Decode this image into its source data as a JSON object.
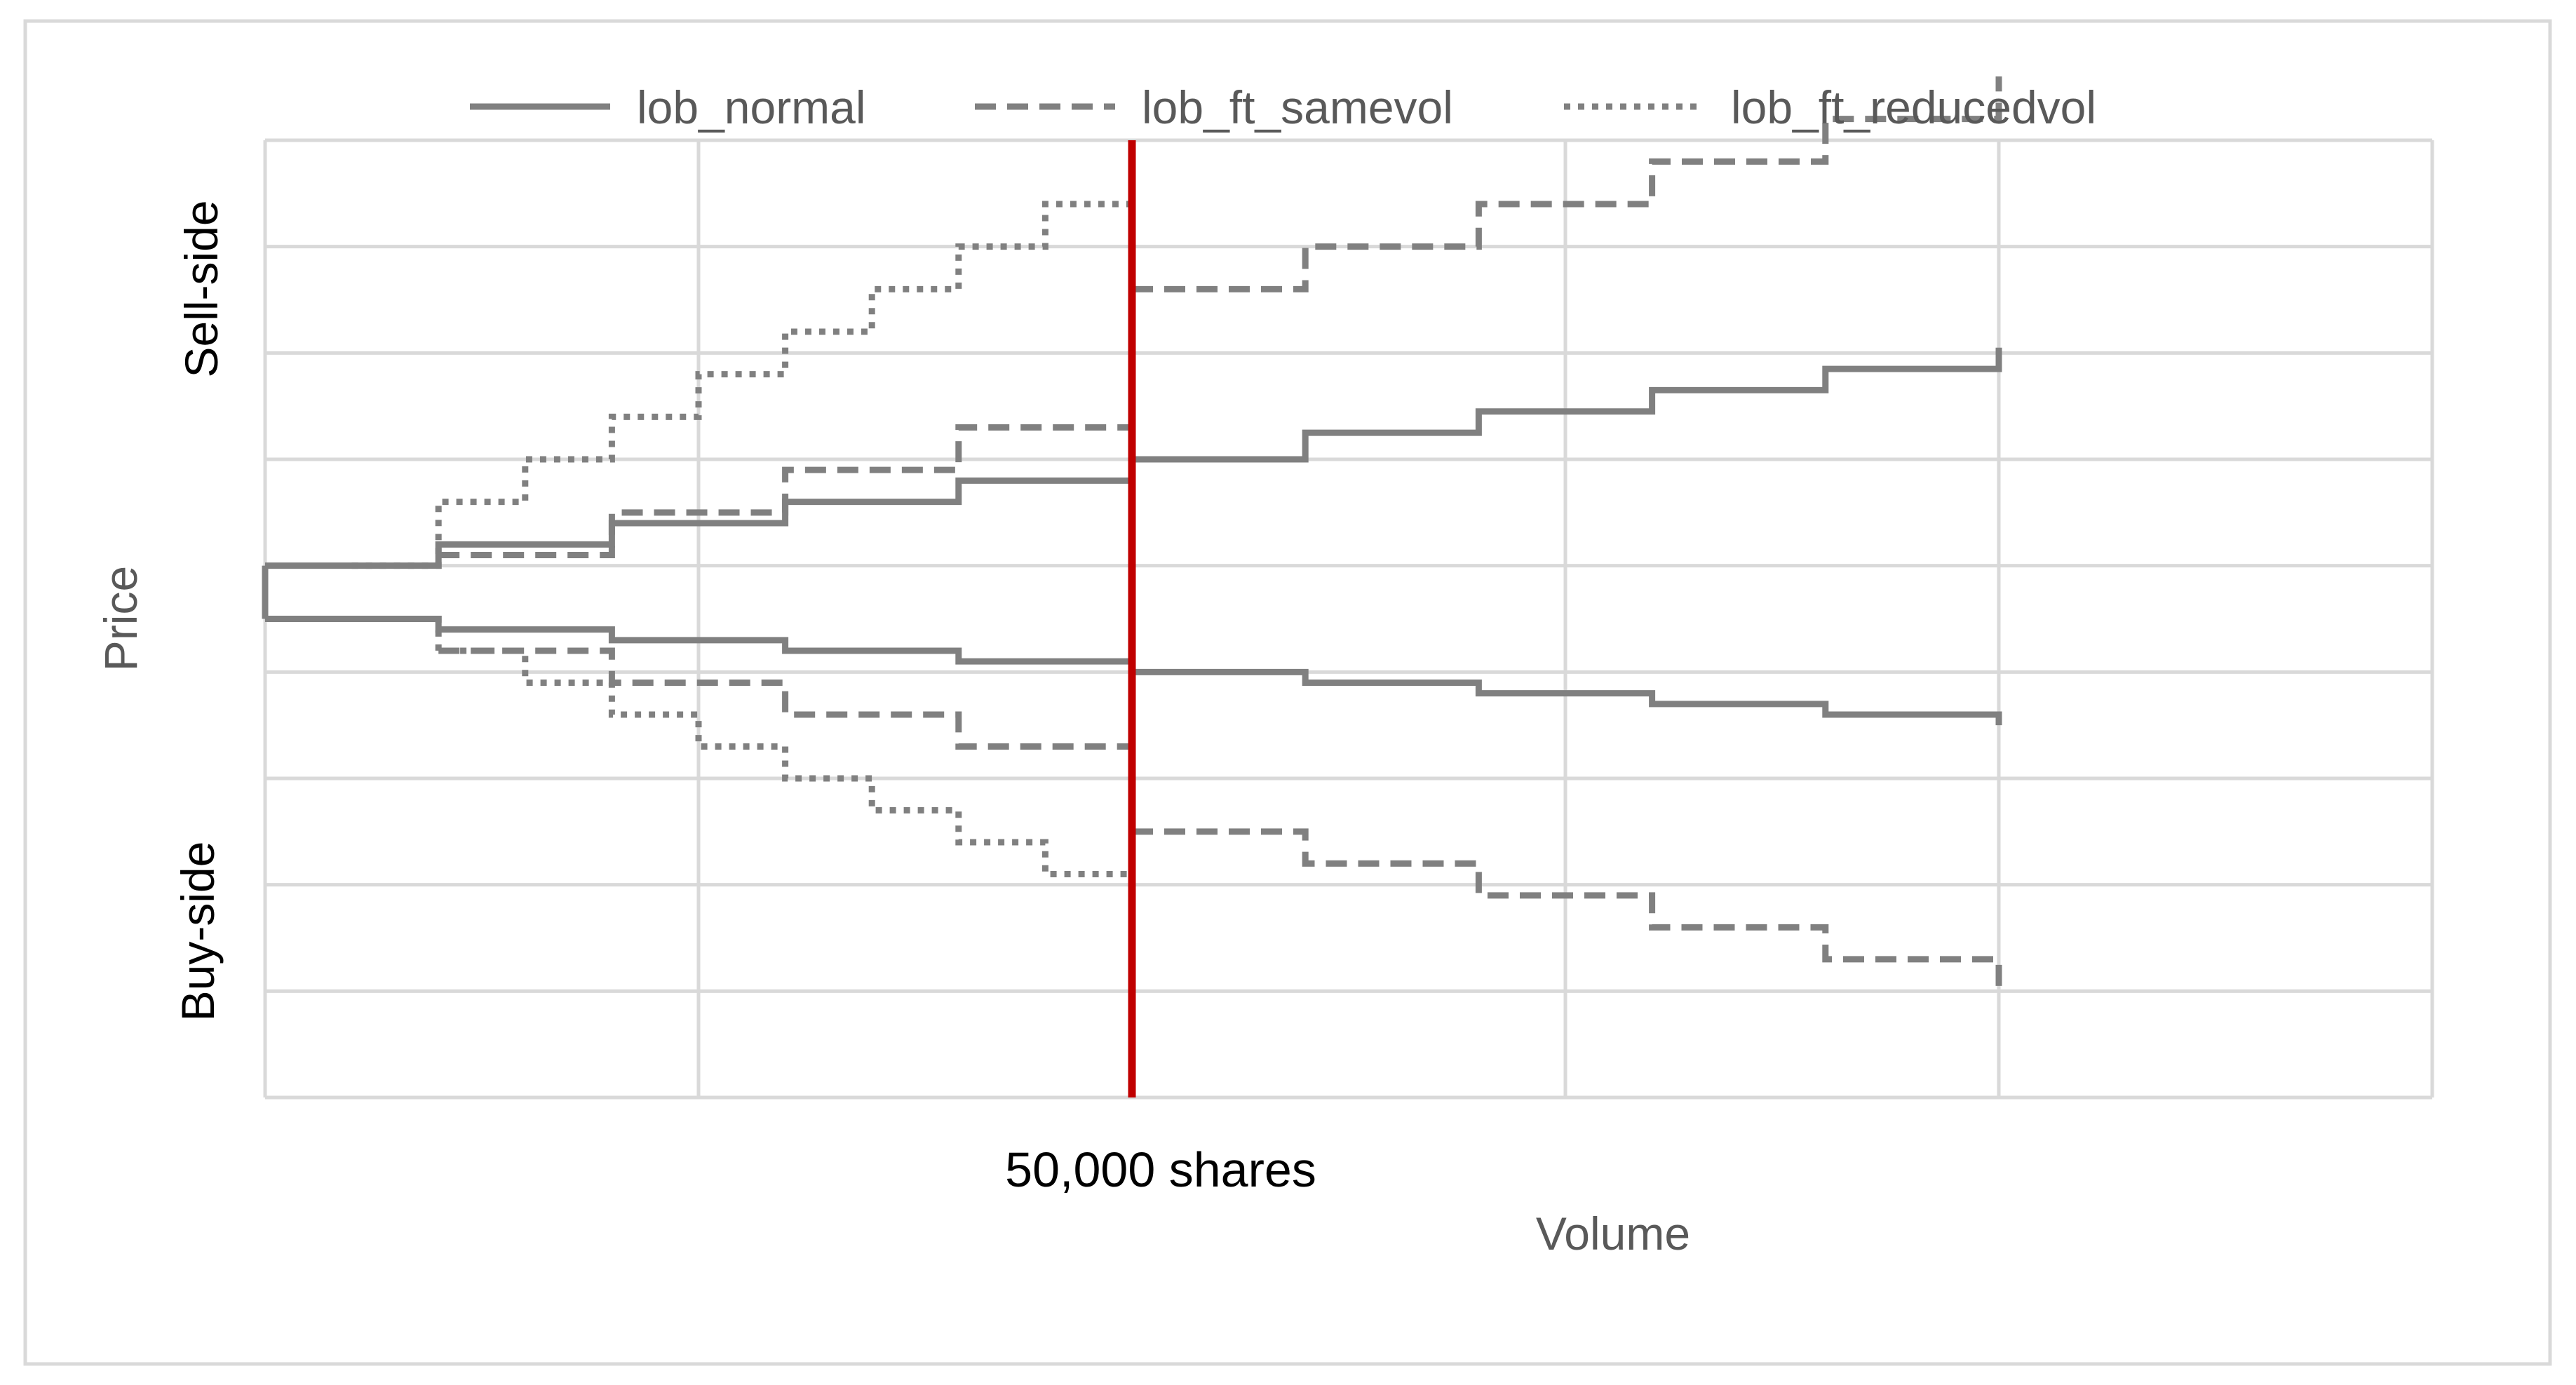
{
  "chart_data": {
    "type": "line",
    "title": "",
    "xlabel": "Volume",
    "ylabel": "Price",
    "side_labels": {
      "sell": "Sell-side",
      "buy": "Buy-side"
    },
    "marker": {
      "x": 5,
      "label": "50,000 shares",
      "color": "#C00000"
    },
    "xlim": [
      0,
      12.5
    ],
    "ylim": [
      -4.5,
      4.5
    ],
    "x_gridlines": [
      0,
      2.5,
      5,
      7.5,
      10,
      12.5
    ],
    "y_gridlines": [
      -4.5,
      -3.5,
      -2.5,
      -1.5,
      -0.5,
      0.5,
      1.5,
      2.5,
      3.5,
      4.5
    ],
    "grid": true,
    "legend_position": "top",
    "series": [
      {
        "name": "lob_normal",
        "style": "solid",
        "color": "#808080",
        "segments": [
          {
            "side": "sell",
            "x": [
              0,
              1,
              2,
              3,
              4,
              5,
              6,
              7,
              8,
              9,
              10
            ],
            "y": [
              0.5,
              0.7,
              0.9,
              1.1,
              1.3,
              1.5,
              1.75,
              1.95,
              2.15,
              2.35,
              2.55
            ]
          },
          {
            "side": "buy",
            "x": [
              0,
              1,
              2,
              3,
              4,
              5,
              6,
              7,
              8,
              9,
              10
            ],
            "y": [
              0.0,
              -0.1,
              -0.2,
              -0.3,
              -0.4,
              -0.5,
              -0.6,
              -0.7,
              -0.8,
              -0.9,
              -1.0
            ]
          }
        ]
      },
      {
        "name": "lob_ft_samevol",
        "style": "dashed",
        "color": "#808080",
        "segments": [
          {
            "side": "sell",
            "x": [
              1,
              2,
              3,
              4,
              5
            ],
            "y": [
              0.6,
              1.0,
              1.4,
              1.8,
              2.2
            ]
          },
          {
            "side": "sell",
            "x": [
              5,
              6,
              7,
              8,
              9,
              10
            ],
            "y": [
              3.1,
              3.5,
              3.9,
              4.3,
              4.7,
              5.1
            ]
          },
          {
            "side": "buy",
            "x": [
              1,
              2,
              3,
              4,
              5
            ],
            "y": [
              -0.3,
              -0.6,
              -0.9,
              -1.2,
              -1.5
            ]
          },
          {
            "side": "buy",
            "x": [
              5,
              6,
              7,
              8,
              9,
              10
            ],
            "y": [
              -2.0,
              -2.3,
              -2.6,
              -2.9,
              -3.2,
              -3.5
            ]
          }
        ]
      },
      {
        "name": "lob_ft_reducedvol",
        "style": "dotted",
        "color": "#808080",
        "segments": [
          {
            "side": "sell",
            "x": [
              0.5,
              1,
              1.5,
              2,
              2.5,
              3,
              3.5,
              4,
              4.5,
              5
            ],
            "y": [
              0.5,
              1.1,
              1.5,
              1.9,
              2.3,
              2.7,
              3.1,
              3.5,
              3.9,
              4.3
            ]
          },
          {
            "side": "buy",
            "x": [
              0.5,
              1,
              1.5,
              2,
              2.5,
              3,
              3.5,
              4,
              4.5,
              5
            ],
            "y": [
              0.0,
              -0.3,
              -0.6,
              -0.9,
              -1.2,
              -1.5,
              -1.8,
              -2.1,
              -2.4,
              -2.7
            ]
          }
        ]
      }
    ]
  }
}
